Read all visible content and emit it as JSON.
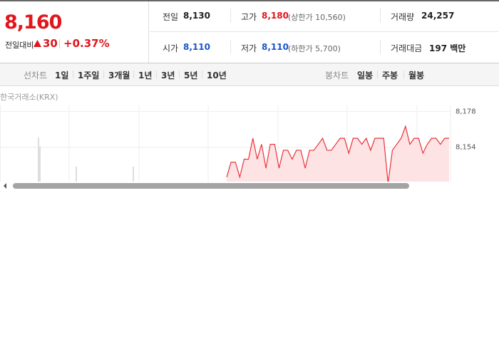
{
  "quote": {
    "price": "8,160",
    "change_label": "전일대비",
    "change": "30",
    "change_rate": "+0.37%"
  },
  "stats": [
    {
      "label": "전일",
      "value": "8,130"
    },
    {
      "label": "고가",
      "value": "8,180",
      "note": "(상한가 10,560)"
    },
    {
      "label": "거래량",
      "value": "24,257"
    },
    {
      "label": "시가",
      "value": "8,110"
    },
    {
      "label": "저가",
      "value": "8,110",
      "note": "(하한가 5,700)"
    },
    {
      "label": "거래대금",
      "value": "197 백만"
    }
  ],
  "tabs": {
    "line_label": "선차트",
    "line": [
      "1일",
      "1주일",
      "3개월",
      "1년",
      "3년",
      "5년",
      "10년"
    ],
    "candle_label": "봉차트",
    "candle": [
      "일봉",
      "주봉",
      "월봉"
    ]
  },
  "chart_data": {
    "type": "line",
    "source": "한국거래소(KRX)",
    "color": "#e8343b",
    "fill": "#fde3e4",
    "values": [
      8134,
      8144,
      8144,
      8134,
      8146,
      8146,
      8160,
      8146,
      8156,
      8140,
      8156,
      8156,
      8140,
      8152,
      8152,
      8146,
      8152,
      8152,
      8140,
      8152,
      8152,
      8156,
      8160,
      8152,
      8152,
      8156,
      8160,
      8160,
      8150,
      8160,
      8160,
      8156,
      8160,
      8152,
      8160,
      8160,
      8160,
      8130,
      8152,
      8156,
      8160,
      8168,
      8156,
      8160,
      8160,
      8150,
      8156,
      8160,
      8160,
      8156,
      8160,
      8160
    ],
    "ylim": [
      8131,
      8182
    ],
    "yticks": [
      {
        "value": 8178,
        "label": "8,178"
      },
      {
        "value": 8154,
        "label": "8,154"
      }
    ],
    "grid": true
  }
}
